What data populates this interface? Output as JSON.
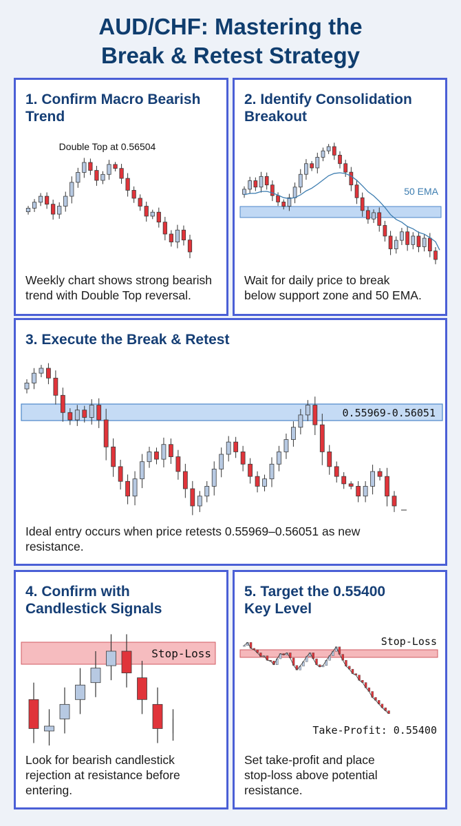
{
  "title": {
    "line1": "AUD/CHF: Mastering the",
    "line2": "Break & Retest Strategy"
  },
  "colors": {
    "bull": "#b7c9e2",
    "bear": "#e0343a",
    "zone": "#9ec3ee",
    "stop": "#f2a0a4",
    "ema": "#3d7db0",
    "border": "#4a5fd6"
  },
  "panels": {
    "p1": {
      "title1": "1. Confirm Macro Bearish",
      "title2": "Trend",
      "desc1": "Weekly chart shows strong bearish",
      "desc2": "trend with Double Top reversal."
    },
    "p2": {
      "title1": "2. Identify Consolidation",
      "title2": "Breakout",
      "desc1": "Wait for daily price to break",
      "desc2": "below support zone and 50 EMA."
    },
    "p3": {
      "title1": "3. Execute the Break & Retest",
      "desc1": "Ideal entry occurs when price retests 0.55969–0.56051 as new",
      "desc2": "resistance."
    },
    "p4": {
      "title1": "4. Confirm with",
      "title2": "Candlestick Signals",
      "desc1": "Look for bearish candlestick",
      "desc2": "rejection at resistance before",
      "desc3": "entering."
    },
    "p5": {
      "title1": "5. Target the 0.55400",
      "title2": "Key Level",
      "desc1": "Set take-profit and place",
      "desc2": "stop-loss above potential",
      "desc3": "resistance."
    }
  },
  "chart_data": [
    {
      "type": "candlestick",
      "title": "",
      "timeframe": "weekly",
      "annotation": "Double Top at 0.56504",
      "closes": [
        0.5655,
        0.5658,
        0.5661,
        0.5657,
        0.5652,
        0.5656,
        0.5661,
        0.5668,
        0.5673,
        0.5678,
        0.5674,
        0.5669,
        0.5672,
        0.5677,
        0.5675,
        0.567,
        0.5664,
        0.566,
        0.5656,
        0.5651,
        0.5653,
        0.5648,
        0.5642,
        0.5638,
        0.5644,
        0.5639,
        0.5633
      ]
    },
    {
      "type": "candlestick",
      "title": "",
      "timeframe": "daily",
      "labels": [
        "50 EMA"
      ],
      "closes": [
        0.566,
        0.5664,
        0.5661,
        0.5666,
        0.5662,
        0.5657,
        0.5654,
        0.5652,
        0.5656,
        0.5661,
        0.5667,
        0.5672,
        0.567,
        0.5675,
        0.5678,
        0.568,
        0.5676,
        0.5672,
        0.5668,
        0.5662,
        0.5656,
        0.565,
        0.5646,
        0.5649,
        0.5643,
        0.5638,
        0.5632,
        0.5636,
        0.564,
        0.5634,
        0.5638,
        0.5633,
        0.5637,
        0.5631,
        0.5627
      ]
    },
    {
      "type": "candlestick",
      "title": "",
      "zone_label": "0.55969–0.56051",
      "zone_label_display": "0.55969-0.56051",
      "closes": [
        0.5612,
        0.5616,
        0.5618,
        0.5614,
        0.5607,
        0.56,
        0.5597,
        0.5601,
        0.5598,
        0.5603,
        0.5597,
        0.5586,
        0.5578,
        0.5572,
        0.5566,
        0.5573,
        0.558,
        0.5584,
        0.5581,
        0.5587,
        0.5582,
        0.5576,
        0.5569,
        0.5562,
        0.5566,
        0.557,
        0.5577,
        0.5583,
        0.5588,
        0.5584,
        0.5579,
        0.5574,
        0.557,
        0.5573,
        0.5579,
        0.5584,
        0.5589,
        0.5594,
        0.5599,
        0.5603,
        0.5595,
        0.5584,
        0.5578,
        0.5574,
        0.5571,
        0.557,
        0.5566,
        0.557,
        0.5576,
        0.5574,
        0.5566,
        0.5562
      ]
    },
    {
      "type": "candlestick",
      "title": "",
      "stop_label": "Stop-Loss",
      "candles": [
        {
          "dir": "bear",
          "open": 0.56,
          "close": 0.5588
        },
        {
          "dir": "bull",
          "open": 0.5587,
          "close": 0.5589
        },
        {
          "dir": "bull",
          "open": 0.5592,
          "close": 0.5598
        },
        {
          "dir": "bull",
          "open": 0.56,
          "close": 0.5606
        },
        {
          "dir": "bull",
          "open": 0.5607,
          "close": 0.5613
        },
        {
          "dir": "bull",
          "open": 0.5614,
          "close": 0.562
        },
        {
          "dir": "bear",
          "open": 0.562,
          "close": 0.5611
        },
        {
          "dir": "bear",
          "open": 0.5609,
          "close": 0.56
        },
        {
          "dir": "bear",
          "open": 0.5598,
          "close": 0.5588
        },
        {
          "dir": "doji",
          "open": 0.5589,
          "close": 0.5589
        }
      ]
    },
    {
      "type": "line",
      "title": "",
      "stop_label": "Stop-Loss",
      "tp_label": "Take-Profit: 0.55400",
      "values": [
        0.5632,
        0.5636,
        0.5628,
        0.5626,
        0.5622,
        0.5617,
        0.5618,
        0.5612,
        0.5611,
        0.5606,
        0.5614,
        0.5621,
        0.5619,
        0.5622,
        0.5615,
        0.5605,
        0.5599,
        0.5604,
        0.561,
        0.5617,
        0.5622,
        0.5614,
        0.5606,
        0.5603,
        0.5605,
        0.5612,
        0.5618,
        0.5624,
        0.563,
        0.562,
        0.5612,
        0.5604,
        0.56,
        0.5594,
        0.5592,
        0.5585,
        0.5582,
        0.5575,
        0.557,
        0.5562,
        0.5558,
        0.5553,
        0.5548,
        0.5544,
        0.554
      ]
    }
  ]
}
